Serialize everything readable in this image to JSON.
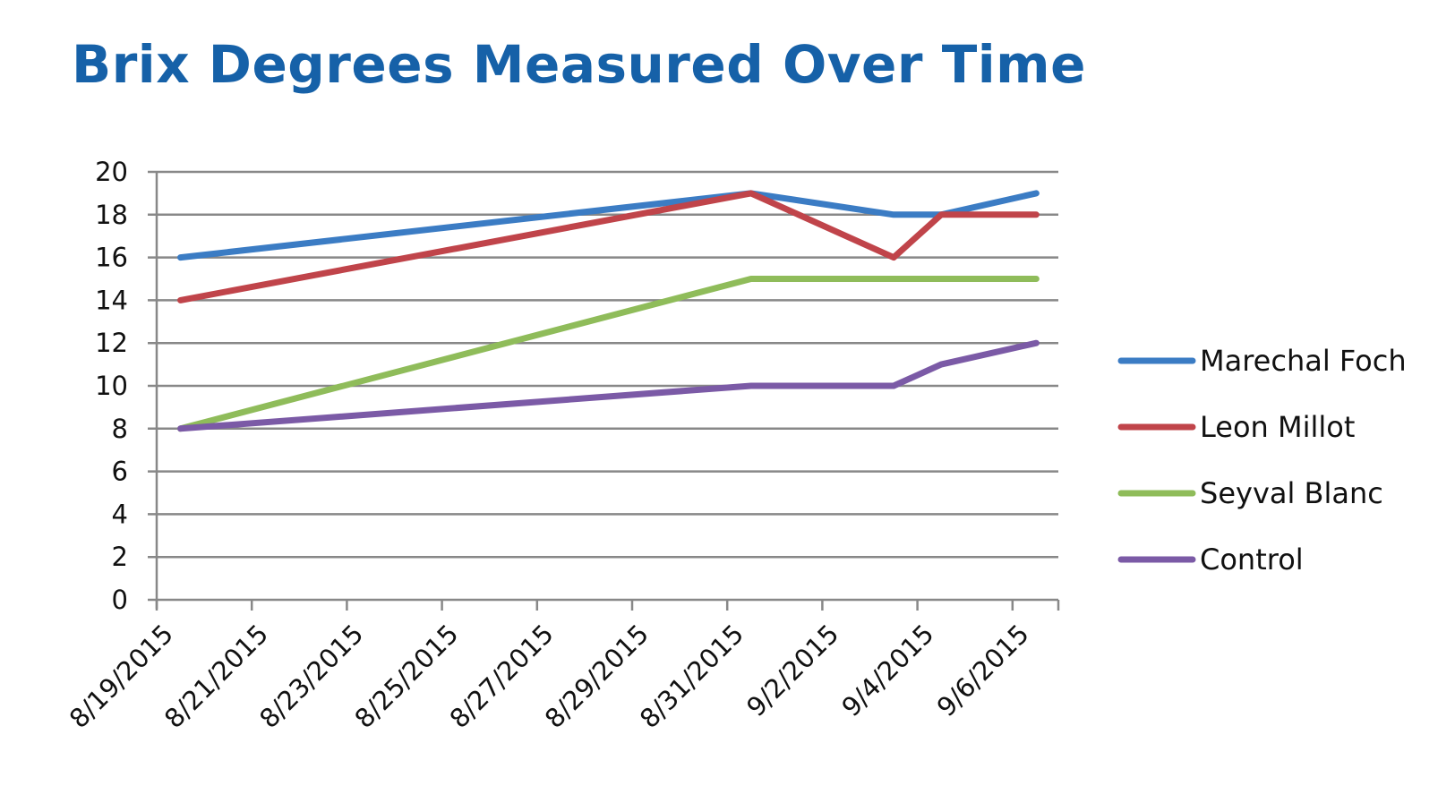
{
  "title": "Brix Degrees Measured Over Time",
  "chart_data": {
    "type": "line",
    "title": "Brix Degrees Measured Over Time",
    "xlabel": "",
    "ylabel": "",
    "ylim": [
      0,
      20
    ],
    "yticks": [
      "0",
      "2",
      "4",
      "6",
      "8",
      "10",
      "12",
      "14",
      "16",
      "18",
      "20"
    ],
    "xticks": [
      "8/19/2015",
      "8/21/2015",
      "8/23/2015",
      "8/25/2015",
      "8/27/2015",
      "8/29/2015",
      "8/31/2015",
      "9/2/2015",
      "9/4/2015",
      "9/6/2015"
    ],
    "xlim": [
      "8/19/2015",
      "9/7/2015"
    ],
    "grid": "horizontal",
    "legend": "right",
    "x": [
      "8/19/2015",
      "8/31/2015",
      "9/3/2015",
      "9/4/2015",
      "9/6/2015"
    ],
    "series": [
      {
        "name": "Marechal Foch",
        "color": "#3b7cc4",
        "values": [
          16,
          19,
          18,
          18,
          19
        ]
      },
      {
        "name": "Leon Millot",
        "color": "#c0444a",
        "values": [
          14,
          19,
          16,
          18,
          18
        ]
      },
      {
        "name": "Seyval Blanc",
        "color": "#8fbc5a",
        "values": [
          8,
          15,
          15,
          15,
          15
        ]
      },
      {
        "name": "Control",
        "color": "#7b5aa6",
        "values": [
          8,
          10,
          10,
          11,
          12
        ]
      }
    ]
  }
}
